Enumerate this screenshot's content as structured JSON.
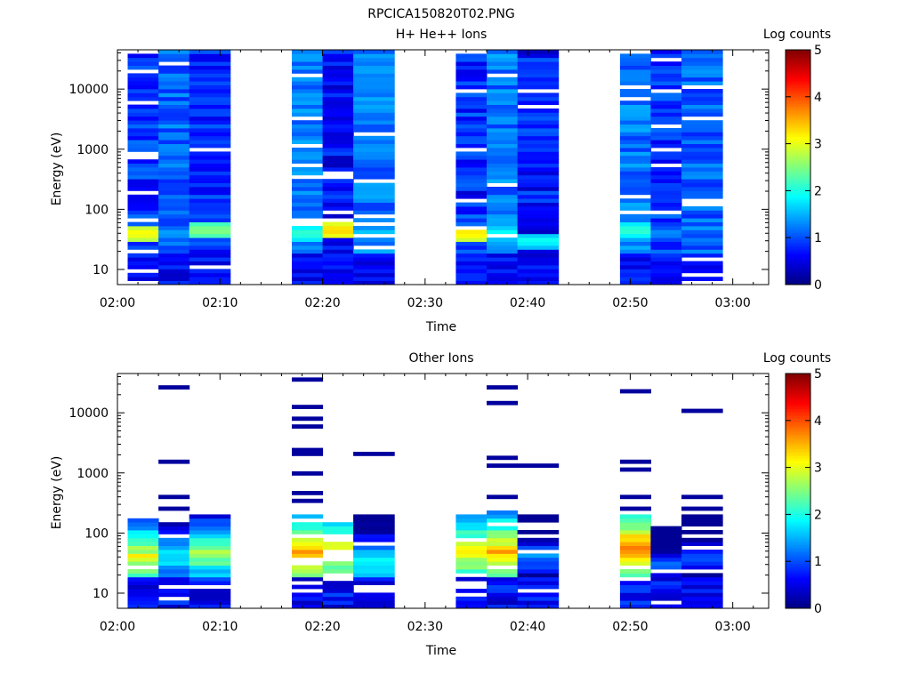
{
  "figure_title": "RPCICA150820T02.PNG",
  "chart_data": [
    {
      "type": "heatmap",
      "title": "H+ He++ Ions",
      "xlabel": "Time",
      "ylabel": "Energy (eV)",
      "y_scale": "log",
      "x_ticks": [
        "02:00",
        "02:10",
        "02:20",
        "02:30",
        "02:40",
        "02:50",
        "03:00"
      ],
      "y_ticks": [
        "10",
        "100",
        "1000",
        "10000"
      ],
      "colorbar": {
        "label": "Log counts",
        "range": [
          0,
          5
        ],
        "ticks": [
          "0",
          "1",
          "2",
          "3",
          "4",
          "5"
        ]
      },
      "columns": [
        {
          "start": "02:01",
          "end": "02:04",
          "profile": "Hcol1"
        },
        {
          "start": "02:04",
          "end": "02:07",
          "profile": "Hcol2"
        },
        {
          "start": "02:07",
          "end": "02:11",
          "profile": "Hcol3"
        },
        {
          "start": "02:17",
          "end": "02:20",
          "profile": "Hcol4"
        },
        {
          "start": "02:20",
          "end": "02:23",
          "profile": "Hcol5"
        },
        {
          "start": "02:23",
          "end": "02:27",
          "profile": "Hcol6"
        },
        {
          "start": "02:33",
          "end": "02:36",
          "profile": "Hcol7"
        },
        {
          "start": "02:36",
          "end": "02:39",
          "profile": "Hcol8"
        },
        {
          "start": "02:39",
          "end": "02:43",
          "profile": "Hcol9"
        },
        {
          "start": "02:49",
          "end": "02:52",
          "profile": "Hcol10"
        },
        {
          "start": "02:52",
          "end": "02:55",
          "profile": "Hcol11"
        },
        {
          "start": "02:55",
          "end": "02:59",
          "profile": "Hcol12"
        }
      ]
    },
    {
      "type": "heatmap",
      "title": "Other Ions",
      "xlabel": "Time",
      "ylabel": "Energy (eV)",
      "y_scale": "log",
      "x_ticks": [
        "02:00",
        "02:10",
        "02:20",
        "02:30",
        "02:40",
        "02:50",
        "03:00"
      ],
      "y_ticks": [
        "10",
        "100",
        "1000",
        "10000"
      ],
      "colorbar": {
        "label": "Log counts",
        "range": [
          0,
          5
        ],
        "ticks": [
          "0",
          "1",
          "2",
          "3",
          "4",
          "5"
        ]
      },
      "columns": [
        {
          "start": "02:01",
          "end": "02:04",
          "profile": "Ocol1"
        },
        {
          "start": "02:04",
          "end": "02:07",
          "profile": "Ocol2"
        },
        {
          "start": "02:07",
          "end": "02:11",
          "profile": "Ocol3"
        },
        {
          "start": "02:17",
          "end": "02:20",
          "profile": "Ocol4"
        },
        {
          "start": "02:20",
          "end": "02:23",
          "profile": "Ocol5"
        },
        {
          "start": "02:23",
          "end": "02:27",
          "profile": "Ocol6"
        },
        {
          "start": "02:33",
          "end": "02:36",
          "profile": "Ocol7"
        },
        {
          "start": "02:36",
          "end": "02:39",
          "profile": "Ocol8"
        },
        {
          "start": "02:39",
          "end": "02:43",
          "profile": "Ocol9"
        },
        {
          "start": "02:49",
          "end": "02:52",
          "profile": "Ocol10"
        },
        {
          "start": "02:52",
          "end": "02:55",
          "profile": "Ocol11"
        },
        {
          "start": "02:55",
          "end": "02:59",
          "profile": "Ocol12"
        }
      ]
    }
  ]
}
